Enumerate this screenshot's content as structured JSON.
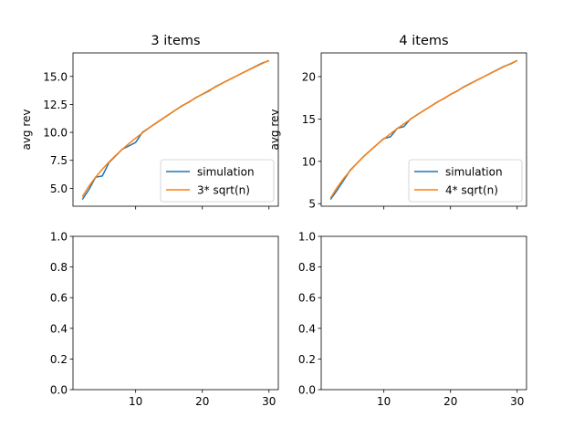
{
  "figure": {
    "background": "#ffffff"
  },
  "chart_data": [
    {
      "type": "line",
      "title": "3 items",
      "xlabel": "",
      "ylabel": "avg rev",
      "xlim": [
        0.6,
        31.4
      ],
      "ylim": [
        3.4,
        17.1
      ],
      "xticks": [
        10,
        20,
        30
      ],
      "xtick_labels_visible": false,
      "yticks": [
        5.0,
        7.5,
        10.0,
        12.5,
        15.0
      ],
      "ytick_labels": [
        "5.0",
        "7.5",
        "10.0",
        "12.5",
        "15.0"
      ],
      "grid": false,
      "legend": "lower-right",
      "x": [
        2,
        3,
        4,
        5,
        6,
        7,
        8,
        9,
        10,
        11,
        12,
        13,
        14,
        15,
        16,
        17,
        18,
        19,
        20,
        21,
        22,
        23,
        24,
        25,
        26,
        27,
        28,
        29,
        30
      ],
      "series": [
        {
          "name": "simulation",
          "color": "#1f77b4",
          "values": [
            4.0,
            4.9,
            6.0,
            6.1,
            7.3,
            7.9,
            8.5,
            8.8,
            9.1,
            10.0,
            10.4,
            10.8,
            11.2,
            11.6,
            12.0,
            12.4,
            12.7,
            13.1,
            13.4,
            13.7,
            14.1,
            14.4,
            14.7,
            15.0,
            15.3,
            15.6,
            15.9,
            16.2,
            16.4
          ]
        },
        {
          "name": "3* sqrt(n)",
          "color": "#ff7f0e",
          "values": [
            4.24,
            5.2,
            6.0,
            6.71,
            7.35,
            7.94,
            8.49,
            9.0,
            9.49,
            9.95,
            10.39,
            10.82,
            11.22,
            11.62,
            12.0,
            12.37,
            12.73,
            13.08,
            13.42,
            13.75,
            14.07,
            14.39,
            14.7,
            15.0,
            15.3,
            15.59,
            15.87,
            16.16,
            16.43
          ]
        }
      ]
    },
    {
      "type": "line",
      "title": "4 items",
      "xlabel": "",
      "ylabel": "avg rev",
      "xlim": [
        0.6,
        31.4
      ],
      "ylim": [
        4.7,
        22.8
      ],
      "xticks": [
        10,
        20,
        30
      ],
      "xtick_labels_visible": false,
      "yticks": [
        5,
        10,
        15,
        20
      ],
      "ytick_labels": [
        "5",
        "10",
        "15",
        "20"
      ],
      "grid": false,
      "legend": "lower-right",
      "x": [
        2,
        3,
        4,
        5,
        6,
        7,
        8,
        9,
        10,
        11,
        12,
        13,
        14,
        15,
        16,
        17,
        18,
        19,
        20,
        21,
        22,
        23,
        24,
        25,
        26,
        27,
        28,
        29,
        30
      ],
      "series": [
        {
          "name": "simulation",
          "color": "#1f77b4",
          "values": [
            5.5,
            6.6,
            7.8,
            9.0,
            9.8,
            10.6,
            11.3,
            12.0,
            12.7,
            12.9,
            13.9,
            14.1,
            15.0,
            15.5,
            16.0,
            16.5,
            17.0,
            17.4,
            17.9,
            18.3,
            18.8,
            19.2,
            19.6,
            20.0,
            20.4,
            20.8,
            21.2,
            21.5,
            21.9
          ]
        },
        {
          "name": "4* sqrt(n)",
          "color": "#ff7f0e",
          "values": [
            5.66,
            6.93,
            8.0,
            8.94,
            9.8,
            10.58,
            11.31,
            12.0,
            12.65,
            13.27,
            13.86,
            14.42,
            14.97,
            15.49,
            16.0,
            16.49,
            16.97,
            17.44,
            17.89,
            18.33,
            18.76,
            19.18,
            19.6,
            20.0,
            20.4,
            20.78,
            21.17,
            21.54,
            21.91
          ]
        }
      ]
    },
    {
      "type": "line",
      "title": "",
      "xlabel": "",
      "ylabel": "",
      "xlim": [
        0.6,
        31.4
      ],
      "ylim": [
        0.0,
        1.0
      ],
      "xticks": [
        10,
        20,
        30
      ],
      "xtick_labels": [
        "10",
        "20",
        "30"
      ],
      "yticks": [
        0.0,
        0.2,
        0.4,
        0.6,
        0.8,
        1.0
      ],
      "ytick_labels": [
        "0.0",
        "0.2",
        "0.4",
        "0.6",
        "0.8",
        "1.0"
      ],
      "grid": false,
      "series": []
    },
    {
      "type": "line",
      "title": "",
      "xlabel": "",
      "ylabel": "",
      "xlim": [
        0.6,
        31.4
      ],
      "ylim": [
        0.0,
        1.0
      ],
      "xticks": [
        10,
        20,
        30
      ],
      "xtick_labels": [
        "10",
        "20",
        "30"
      ],
      "yticks": [
        0.0,
        0.2,
        0.4,
        0.6,
        0.8,
        1.0
      ],
      "ytick_labels": [
        "0.0",
        "0.2",
        "0.4",
        "0.6",
        "0.8",
        "1.0"
      ],
      "grid": false,
      "series": []
    }
  ]
}
